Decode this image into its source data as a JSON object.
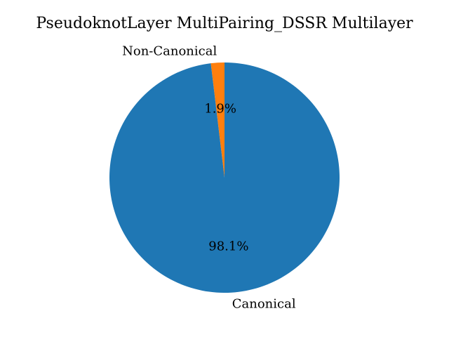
{
  "chart_data": {
    "type": "pie",
    "title": "PseudoknotLayer MultiPairing_DSSR Multilayer",
    "slices": [
      {
        "label": "Non-Canonical",
        "value": 1.9,
        "pct_label": "1.9%",
        "color": "#ff7f0e"
      },
      {
        "label": "Canonical",
        "value": 98.1,
        "pct_label": "98.1%",
        "color": "#1f77b4"
      }
    ],
    "start_angle_deg": 90,
    "direction": "counterclockwise"
  }
}
